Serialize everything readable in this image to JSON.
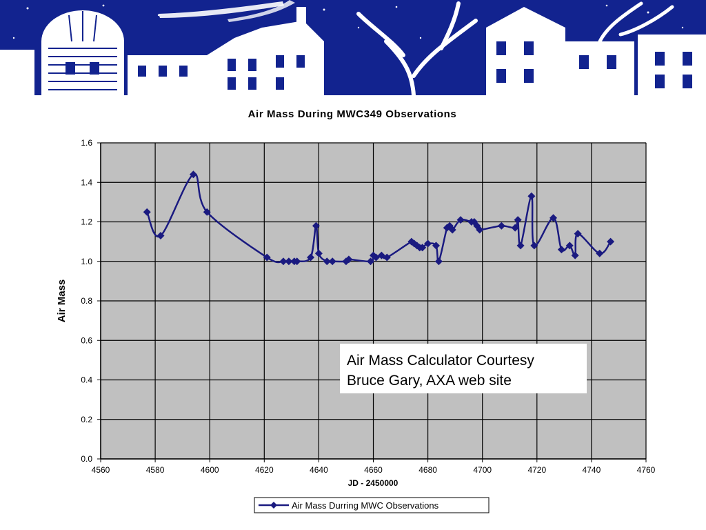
{
  "colors": {
    "banner_sky": "#12238f",
    "plot_background": "#c0c0c0",
    "series_line": "#1a1a80",
    "grid": "#000000"
  },
  "banner": {
    "description_icon": "village-skyline-illustration"
  },
  "note": {
    "line1": "Air Mass Calculator Courtesy",
    "line2": "Bruce Gary, AXA web site"
  },
  "chart_data": {
    "type": "line",
    "title": "Air Mass During MWC349 Observations",
    "xlabel": "JD - 2450000",
    "ylabel": "Air Mass",
    "xlim": [
      4560,
      4760
    ],
    "ylim": [
      0.0,
      1.6
    ],
    "x_ticks": [
      4560,
      4580,
      4600,
      4620,
      4640,
      4660,
      4680,
      4700,
      4720,
      4740,
      4760
    ],
    "y_ticks": [
      "0.0",
      "0.2",
      "0.4",
      "0.6",
      "0.8",
      "1.0",
      "1.2",
      "1.4",
      "1.6"
    ],
    "grid": true,
    "legend_position": "bottom-center",
    "series": [
      {
        "name": "Air Mass Durring MWC Observations",
        "marker": "diamond",
        "x": [
          4577,
          4582,
          4594,
          4599,
          4621,
          4627,
          4629,
          4631,
          4632,
          4637,
          4639,
          4640,
          4643,
          4645,
          4650,
          4651,
          4659,
          4660,
          4661,
          4663,
          4665,
          4674,
          4675,
          4676,
          4677,
          4678,
          4680,
          4683,
          4684,
          4687,
          4688,
          4689,
          4692,
          4696,
          4697,
          4698,
          4699,
          4707,
          4712,
          4713,
          4714,
          4718,
          4719,
          4726,
          4729,
          4732,
          4734,
          4735,
          4743,
          4747
        ],
        "y": [
          1.25,
          1.13,
          1.44,
          1.25,
          1.02,
          1.0,
          1.0,
          1.0,
          1.0,
          1.02,
          1.18,
          1.04,
          1.0,
          1.0,
          1.0,
          1.01,
          1.0,
          1.03,
          1.02,
          1.03,
          1.02,
          1.1,
          1.09,
          1.08,
          1.07,
          1.07,
          1.09,
          1.08,
          1.0,
          1.17,
          1.18,
          1.16,
          1.21,
          1.2,
          1.2,
          1.18,
          1.16,
          1.18,
          1.17,
          1.21,
          1.08,
          1.33,
          1.08,
          1.22,
          1.06,
          1.08,
          1.03,
          1.14,
          1.04,
          1.1
        ]
      }
    ]
  }
}
